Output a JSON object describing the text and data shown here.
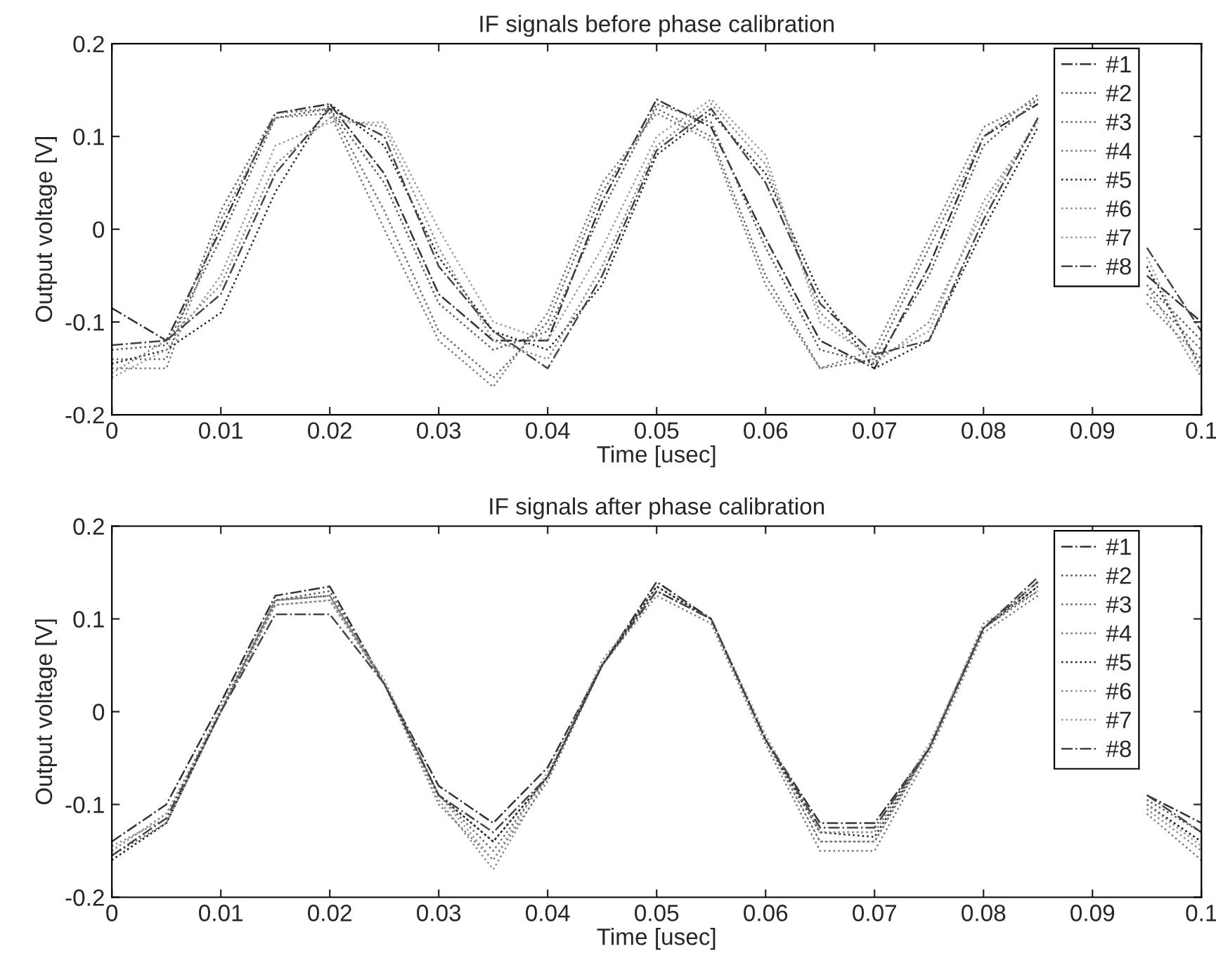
{
  "chart_data": [
    {
      "type": "line",
      "title": "IF signals before phase calibration",
      "xlabel": "Time [usec]",
      "ylabel": "Output voltage [V]",
      "x": [
        0,
        0.005,
        0.01,
        0.015,
        0.02,
        0.025,
        0.03,
        0.035,
        0.04,
        0.045,
        0.05,
        0.055,
        0.06,
        0.065,
        0.07,
        0.075,
        0.08,
        0.085,
        0.09,
        0.095,
        0.1
      ],
      "xlim": [
        0,
        0.1
      ],
      "ylim": [
        -0.2,
        0.2
      ],
      "xticks": [
        0,
        0.01,
        0.02,
        0.03,
        0.04,
        0.05,
        0.06,
        0.07,
        0.08,
        0.09,
        0.1
      ],
      "yticks": [
        -0.2,
        -0.1,
        0,
        0.1,
        0.2
      ],
      "legend": "top right",
      "grid": false,
      "series": [
        {
          "name": "#1",
          "color": "#333333",
          "line_style": "dashdot",
          "values": [
            -0.085,
            -0.12,
            0.0,
            0.125,
            0.135,
            0.06,
            -0.07,
            -0.12,
            -0.12,
            0.03,
            0.14,
            0.11,
            -0.01,
            -0.12,
            -0.15,
            -0.04,
            0.1,
            0.135,
            null,
            -0.05,
            -0.1
          ]
        },
        {
          "name": "#2",
          "color": "#555555",
          "line_style": "dotted",
          "values": [
            -0.13,
            -0.125,
            -0.01,
            0.12,
            0.13,
            0.05,
            -0.08,
            -0.13,
            -0.11,
            0.02,
            0.135,
            0.115,
            -0.02,
            -0.13,
            -0.145,
            -0.05,
            0.09,
            0.14,
            null,
            -0.06,
            -0.12
          ]
        },
        {
          "name": "#3",
          "color": "#666666",
          "line_style": "dotted",
          "values": [
            -0.14,
            -0.14,
            0.02,
            0.125,
            0.13,
            0.02,
            -0.11,
            -0.16,
            -0.1,
            0.04,
            0.13,
            0.1,
            -0.05,
            -0.15,
            -0.14,
            -0.02,
            0.1,
            0.145,
            null,
            -0.07,
            -0.13
          ]
        },
        {
          "name": "#4",
          "color": "#777777",
          "line_style": "dotted",
          "values": [
            -0.15,
            -0.15,
            0.01,
            0.12,
            0.125,
            0.0,
            -0.12,
            -0.17,
            -0.09,
            0.05,
            0.125,
            0.095,
            -0.06,
            -0.15,
            -0.13,
            -0.01,
            0.11,
            0.14,
            null,
            -0.08,
            -0.14
          ]
        },
        {
          "name": "#5",
          "color": "#222222",
          "line_style": "dotted",
          "values": [
            -0.145,
            -0.13,
            -0.09,
            0.04,
            0.135,
            0.09,
            -0.03,
            -0.11,
            -0.13,
            -0.06,
            0.08,
            0.125,
            0.06,
            -0.07,
            -0.15,
            -0.12,
            0.0,
            0.11,
            null,
            -0.04,
            -0.15
          ]
        },
        {
          "name": "#6",
          "color": "#888888",
          "line_style": "dotted",
          "values": [
            -0.155,
            -0.12,
            -0.06,
            0.07,
            0.12,
            0.11,
            -0.02,
            -0.12,
            -0.14,
            -0.04,
            0.09,
            0.135,
            0.07,
            -0.09,
            -0.145,
            -0.1,
            0.02,
            0.12,
            null,
            -0.06,
            -0.16
          ]
        },
        {
          "name": "#7",
          "color": "#999999",
          "line_style": "dotted",
          "values": [
            -0.16,
            -0.13,
            -0.05,
            0.09,
            0.115,
            0.115,
            0.0,
            -0.1,
            -0.12,
            -0.02,
            0.1,
            0.14,
            0.08,
            -0.1,
            -0.14,
            -0.11,
            0.03,
            0.115,
            null,
            -0.03,
            -0.155
          ]
        },
        {
          "name": "#8",
          "color": "#444444",
          "line_style": "dashdot",
          "values": [
            -0.125,
            -0.12,
            -0.07,
            0.06,
            0.13,
            0.1,
            -0.04,
            -0.11,
            -0.15,
            -0.05,
            0.085,
            0.13,
            0.05,
            -0.08,
            -0.135,
            -0.12,
            0.01,
            0.12,
            null,
            -0.02,
            -0.11
          ]
        }
      ]
    },
    {
      "type": "line",
      "title": "IF signals after phase calibration",
      "xlabel": "Time [usec]",
      "ylabel": "Output voltage [V]",
      "x": [
        0,
        0.005,
        0.01,
        0.015,
        0.02,
        0.025,
        0.03,
        0.035,
        0.04,
        0.045,
        0.05,
        0.055,
        0.06,
        0.065,
        0.07,
        0.075,
        0.08,
        0.085,
        0.09,
        0.095,
        0.1
      ],
      "xlim": [
        0,
        0.1
      ],
      "ylim": [
        -0.2,
        0.2
      ],
      "xticks": [
        0,
        0.01,
        0.02,
        0.03,
        0.04,
        0.05,
        0.06,
        0.07,
        0.08,
        0.09,
        0.1
      ],
      "yticks": [
        -0.2,
        -0.1,
        0,
        0.1,
        0.2
      ],
      "legend": "top right",
      "grid": false,
      "series": [
        {
          "name": "#1",
          "color": "#333333",
          "line_style": "dashdot",
          "values": [
            -0.14,
            -0.1,
            0.01,
            0.125,
            0.135,
            0.03,
            -0.08,
            -0.12,
            -0.06,
            0.05,
            0.14,
            0.1,
            -0.03,
            -0.12,
            -0.12,
            -0.04,
            0.09,
            0.14,
            null,
            -0.09,
            -0.12
          ]
        },
        {
          "name": "#2",
          "color": "#555555",
          "line_style": "dotted",
          "values": [
            -0.15,
            -0.11,
            0.0,
            0.12,
            0.13,
            0.03,
            -0.09,
            -0.14,
            -0.07,
            0.05,
            0.135,
            0.1,
            -0.03,
            -0.13,
            -0.13,
            -0.04,
            0.09,
            0.135,
            null,
            -0.095,
            -0.13
          ]
        },
        {
          "name": "#3",
          "color": "#666666",
          "line_style": "dotted",
          "values": [
            -0.155,
            -0.12,
            0.0,
            0.12,
            0.125,
            0.03,
            -0.09,
            -0.15,
            -0.07,
            0.05,
            0.13,
            0.1,
            -0.03,
            -0.14,
            -0.14,
            -0.04,
            0.09,
            0.13,
            null,
            -0.1,
            -0.14
          ]
        },
        {
          "name": "#4",
          "color": "#777777",
          "line_style": "dotted",
          "values": [
            -0.16,
            -0.12,
            0.0,
            0.115,
            0.12,
            0.03,
            -0.1,
            -0.16,
            -0.075,
            0.05,
            0.125,
            0.095,
            -0.035,
            -0.15,
            -0.15,
            -0.045,
            0.085,
            0.125,
            null,
            -0.11,
            -0.16
          ]
        },
        {
          "name": "#5",
          "color": "#222222",
          "line_style": "dotted",
          "values": [
            -0.16,
            -0.12,
            0.0,
            0.12,
            0.125,
            0.03,
            -0.09,
            -0.14,
            -0.07,
            0.05,
            0.135,
            0.1,
            -0.03,
            -0.13,
            -0.135,
            -0.04,
            0.09,
            0.135,
            null,
            -0.1,
            -0.14
          ]
        },
        {
          "name": "#6",
          "color": "#888888",
          "line_style": "dotted",
          "values": [
            -0.145,
            -0.115,
            0.005,
            0.12,
            0.125,
            0.03,
            -0.095,
            -0.17,
            -0.07,
            0.055,
            0.13,
            0.1,
            -0.03,
            -0.14,
            -0.14,
            -0.04,
            0.095,
            0.13,
            null,
            -0.105,
            -0.15
          ]
        },
        {
          "name": "#7",
          "color": "#999999",
          "line_style": "dotted",
          "values": [
            -0.15,
            -0.11,
            0.0,
            0.115,
            0.12,
            0.035,
            -0.09,
            -0.16,
            -0.065,
            0.05,
            0.13,
            0.1,
            -0.025,
            -0.13,
            -0.13,
            -0.035,
            0.09,
            0.14,
            null,
            -0.1,
            -0.145
          ]
        },
        {
          "name": "#8",
          "color": "#444444",
          "line_style": "dashdot",
          "values": [
            -0.155,
            -0.115,
            0.0,
            0.105,
            0.105,
            0.03,
            -0.09,
            -0.13,
            -0.07,
            0.05,
            0.13,
            0.1,
            -0.03,
            -0.125,
            -0.125,
            -0.04,
            0.09,
            0.145,
            null,
            -0.09,
            -0.13
          ]
        }
      ]
    }
  ]
}
